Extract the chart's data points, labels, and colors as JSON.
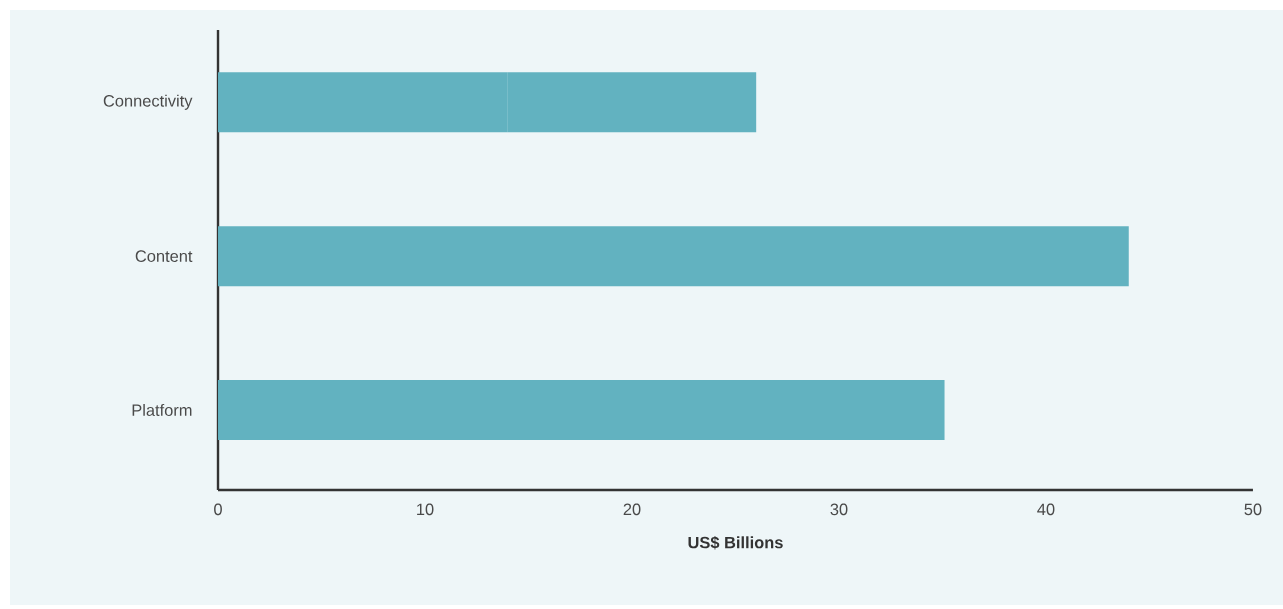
{
  "chart_data": {
    "type": "bar",
    "orientation": "horizontal",
    "stacked": true,
    "categories": [
      "Connectivity",
      "Content",
      "Platform"
    ],
    "series": [
      {
        "color": "#62b2c0",
        "values": [
          14,
          44,
          35.1
        ]
      },
      {
        "color": "#62b2c0",
        "values": [
          12,
          null,
          null
        ]
      }
    ],
    "xlim": [
      0,
      50
    ],
    "xticks": [
      0,
      10,
      20,
      30,
      40,
      50
    ],
    "xlabel": "US$ Billions",
    "grid": false
  }
}
